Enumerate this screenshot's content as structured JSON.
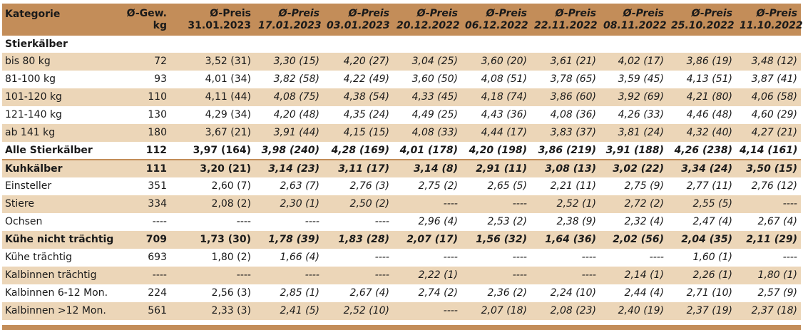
{
  "headers": {
    "category": "Kategorie",
    "weight": [
      "Ø-Gew.",
      "kg"
    ],
    "prices": [
      [
        "Ø-Preis",
        "31.01.2023"
      ],
      [
        "Ø-Preis",
        "17.01.2023"
      ],
      [
        "Ø-Preis",
        "03.01.2023"
      ],
      [
        "Ø-Preis",
        "20.12.2022"
      ],
      [
        "Ø-Preis",
        "06.12.2022"
      ],
      [
        "Ø-Preis",
        "22.11.2022"
      ],
      [
        "Ø-Preis",
        "08.11.2022"
      ],
      [
        "Ø-Preis",
        "25.10.2022"
      ],
      [
        "Ø-Preis",
        "11.10.2022"
      ]
    ]
  },
  "section_title": "Stierkälber",
  "rows": [
    {
      "label": "bis 80 kg",
      "weight": "72",
      "prices": [
        "3,52 (31)",
        "3,30 (15)",
        "4,20 (27)",
        "3,04 (25)",
        "3,60 (20)",
        "3,61 (21)",
        "4,02 (17)",
        "3,86 (19)",
        "3,48 (12)"
      ],
      "bold": false,
      "band": true
    },
    {
      "label": "81-100 kg",
      "weight": "93",
      "prices": [
        "4,01 (34)",
        "3,82 (58)",
        "4,22 (49)",
        "3,60 (50)",
        "4,08 (51)",
        "3,78 (65)",
        "3,59 (45)",
        "4,13 (51)",
        "3,87 (41)"
      ],
      "bold": false,
      "band": false
    },
    {
      "label": "101-120 kg",
      "weight": "110",
      "prices": [
        "4,11 (44)",
        "4,08 (75)",
        "4,38 (54)",
        "4,33 (45)",
        "4,18 (74)",
        "3,86 (60)",
        "3,92 (69)",
        "4,21 (80)",
        "4,06 (58)"
      ],
      "bold": false,
      "band": true
    },
    {
      "label": "121-140 kg",
      "weight": "130",
      "prices": [
        "4,29 (34)",
        "4,20 (48)",
        "4,35 (24)",
        "4,49 (25)",
        "4,43 (36)",
        "4,08 (36)",
        "4,26 (33)",
        "4,46 (48)",
        "4,60 (29)"
      ],
      "bold": false,
      "band": false
    },
    {
      "label": "ab 141 kg",
      "weight": "180",
      "prices": [
        "3,67 (21)",
        "3,91 (44)",
        "4,15 (15)",
        "4,08 (33)",
        "4,44 (17)",
        "3,83 (37)",
        "3,81 (24)",
        "4,32 (40)",
        "4,27 (21)"
      ],
      "bold": false,
      "band": true
    },
    {
      "label": "Alle Stierkälber",
      "weight": "112",
      "prices": [
        "3,97 (164)",
        "3,98 (240)",
        "4,28 (169)",
        "4,01 (178)",
        "4,20 (198)",
        "3,86 (219)",
        "3,91 (188)",
        "4,26 (238)",
        "4,14 (161)"
      ],
      "bold": true,
      "band": false
    },
    {
      "label": "Kuhkälber",
      "weight": "111",
      "prices": [
        "3,20 (21)",
        "3,14 (23)",
        "3,11 (17)",
        "3,14 (8)",
        "2,91 (11)",
        "3,08 (13)",
        "3,02 (22)",
        "3,34 (24)",
        "3,50 (15)"
      ],
      "bold": true,
      "band": true,
      "after_total": true
    },
    {
      "label": "Einsteller",
      "weight": "351",
      "prices": [
        "2,60 (7)",
        "2,63 (7)",
        "2,76 (3)",
        "2,75 (2)",
        "2,65 (5)",
        "2,21 (11)",
        "2,75 (9)",
        "2,77 (11)",
        "2,76 (12)"
      ],
      "bold": false,
      "band": false
    },
    {
      "label": "Stiere",
      "weight": "334",
      "prices": [
        "2,08 (2)",
        "2,30 (1)",
        "2,50 (2)",
        "----",
        "----",
        "2,52 (1)",
        "2,72 (2)",
        "2,55 (5)",
        "----"
      ],
      "bold": false,
      "band": true
    },
    {
      "label": "Ochsen",
      "weight": "----",
      "prices": [
        "----",
        "----",
        "----",
        "2,96 (4)",
        "2,53 (2)",
        "2,38 (9)",
        "2,32 (4)",
        "2,47 (4)",
        "2,67 (4)"
      ],
      "bold": false,
      "band": false
    },
    {
      "label": "Kühe nicht trächtig",
      "weight": "709",
      "prices": [
        "1,73 (30)",
        "1,78 (39)",
        "1,83 (28)",
        "2,07 (17)",
        "1,56 (32)",
        "1,64 (36)",
        "2,02 (56)",
        "2,04 (35)",
        "2,11 (29)"
      ],
      "bold": true,
      "band": true
    },
    {
      "label": "Kühe trächtig",
      "weight": "693",
      "prices": [
        "1,80 (2)",
        "1,66 (4)",
        "----",
        "----",
        "----",
        "----",
        "----",
        "1,60 (1)",
        "----"
      ],
      "bold": false,
      "band": false
    },
    {
      "label": "Kalbinnen trächtig",
      "weight": "----",
      "prices": [
        "----",
        "----",
        "----",
        "2,22 (1)",
        "----",
        "----",
        "2,14 (1)",
        "2,26 (1)",
        "1,80 (1)"
      ],
      "bold": false,
      "band": true
    },
    {
      "label": "Kalbinnen 6-12 Mon.",
      "weight": "224",
      "prices": [
        "2,56 (3)",
        "2,85 (1)",
        "2,67 (4)",
        "2,74 (2)",
        "2,36 (2)",
        "2,24 (10)",
        "2,44 (4)",
        "2,71 (10)",
        "2,57 (9)"
      ],
      "bold": false,
      "band": false
    },
    {
      "label": "Kalbinnen >12 Mon.",
      "weight": "561",
      "prices": [
        "2,33 (3)",
        "2,41 (5)",
        "2,52 (10)",
        "----",
        "2,07 (18)",
        "2,08 (23)",
        "2,40 (19)",
        "2,37 (19)",
        "2,37 (18)"
      ],
      "bold": false,
      "band": true
    }
  ],
  "colors": {
    "header_bg": "#c38d59",
    "band_bg": "#ecd6b8",
    "plain_bg": "#ffffff"
  }
}
